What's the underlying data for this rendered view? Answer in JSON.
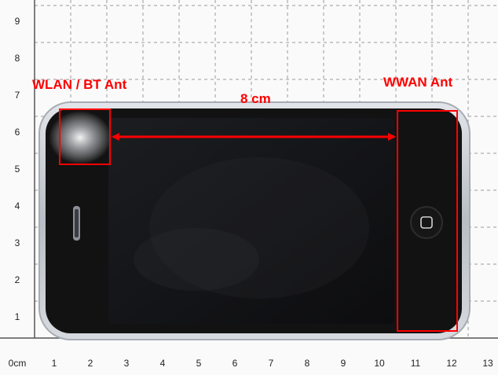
{
  "scale": {
    "y_labels": [
      "9",
      "8",
      "7",
      "6",
      "5",
      "4",
      "3",
      "2",
      "1"
    ],
    "x_labels": [
      "0cm",
      "1",
      "2",
      "3",
      "4",
      "5",
      "6",
      "7",
      "8",
      "9",
      "10",
      "11",
      "12",
      "13"
    ]
  },
  "annotations": {
    "wlan_label": "WLAN / BT Ant",
    "wwan_label": "WWAN Ant",
    "distance_label": "8 cm"
  },
  "colors": {
    "annotation": "#ff0000",
    "grid": "#9a9a9a",
    "phone_body": "#121212",
    "phone_bezel": "#c9cdd2"
  }
}
